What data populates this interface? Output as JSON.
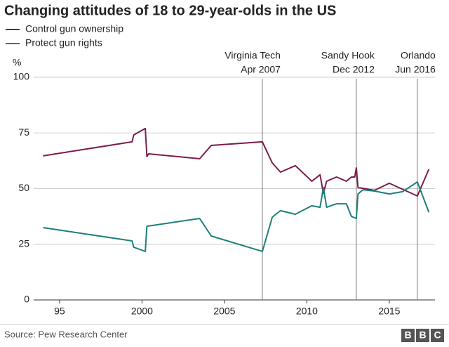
{
  "chart_data": {
    "type": "line",
    "title": "Changing attitudes of 18 to 29-year-olds in the US",
    "y_unit": "%",
    "source": "Source: Pew Research Center",
    "logo": [
      "B",
      "B",
      "C"
    ],
    "xlim": [
      1993.43,
      2017.77
    ],
    "xticks": [
      {
        "value": 1995,
        "label": "95"
      },
      2000,
      2005,
      2010,
      2015
    ],
    "ylim": [
      0,
      100
    ],
    "yticks": [
      0,
      25,
      50,
      75,
      100
    ],
    "grid": true,
    "series": [
      {
        "name": "Control gun ownership",
        "color": "#7b1d4b",
        "x": [
          1994.0,
          1999.4,
          1999.5,
          2000.2,
          2000.3,
          2000.4,
          2003.5,
          2004.2,
          2007.3,
          2007.9,
          2008.4,
          2009.3,
          2010.3,
          2010.8,
          2011.0,
          2011.2,
          2011.8,
          2012.4,
          2012.7,
          2012.9,
          2013.0,
          2013.1,
          2014.1,
          2015.0,
          2016.7,
          2017.4
        ],
        "values": [
          64.7,
          71.0,
          74.1,
          77.0,
          64.4,
          65.6,
          63.4,
          69.4,
          71.0,
          61.5,
          57.4,
          60.3,
          53.3,
          56.2,
          47.9,
          53.3,
          55.2,
          53.3,
          55.2,
          55.2,
          59.3,
          50.5,
          49.2,
          52.4,
          46.7,
          58.7
        ]
      },
      {
        "name": "Protect gun rights",
        "color": "#1c807a",
        "x": [
          1994.0,
          1999.4,
          1999.5,
          2000.2,
          2000.3,
          2003.5,
          2004.2,
          2007.3,
          2007.9,
          2008.4,
          2009.3,
          2010.3,
          2010.8,
          2011.0,
          2011.2,
          2011.8,
          2012.4,
          2012.7,
          2013.0,
          2013.1,
          2013.4,
          2014.1,
          2015.0,
          2015.8,
          2016.7,
          2017.4
        ],
        "values": [
          32.5,
          26.5,
          23.7,
          21.8,
          33.1,
          36.6,
          28.7,
          21.8,
          37.2,
          40.1,
          38.5,
          42.3,
          41.6,
          50.5,
          41.6,
          43.2,
          43.2,
          37.5,
          36.6,
          47.6,
          49.5,
          48.9,
          47.6,
          48.6,
          53.0,
          39.4
        ]
      }
    ],
    "annotations": [
      {
        "x": 2007.3,
        "lines": [
          "Virginia Tech",
          "Apr 2007"
        ]
      },
      {
        "x": 2013.0,
        "lines": [
          "Sandy Hook",
          "Dec 2012"
        ]
      },
      {
        "x": 2016.7,
        "lines": [
          "Orlando",
          "Jun 2016"
        ]
      }
    ]
  }
}
